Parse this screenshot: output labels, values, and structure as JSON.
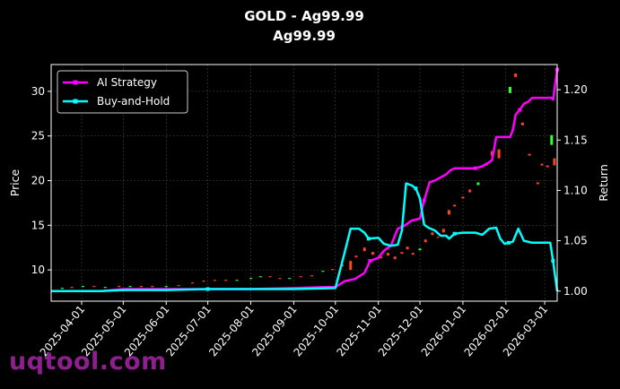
{
  "chart_data": {
    "type": "line",
    "title": "GOLD - Ag99.99",
    "subtitle": "Ag99.99",
    "ylabel": "Price",
    "y2label": "Return",
    "ylim": [
      6.5,
      33.0
    ],
    "y2lim": [
      0.99,
      1.225
    ],
    "xlim": [
      "2025-03-10",
      "2026-03-10"
    ],
    "x_ticks": [
      "2025-04-01",
      "2025-05-01",
      "2025-06-01",
      "2025-07-01",
      "2025-08-01",
      "2025-09-01",
      "2025-10-01",
      "2025-11-01",
      "2025-12-01",
      "2026-01-01",
      "2026-02-01",
      "2026-03-01"
    ],
    "y_ticks": [
      10,
      15,
      20,
      25,
      30
    ],
    "y2_ticks": [
      1.0,
      1.05,
      1.1,
      1.15,
      1.2
    ],
    "grid": true,
    "legend_position": "top-left",
    "colors": {
      "up": "#33ff33",
      "down": "#ff4422",
      "strategy": "#ff00ff",
      "hold": "#00ffff",
      "background": "#000000"
    },
    "series": [
      {
        "name": "AI Strategy",
        "axis": "right",
        "points": [
          [
            "2025-03-10",
            1.0
          ],
          [
            "2025-04-15",
            1.0
          ],
          [
            "2025-05-01",
            1.002
          ],
          [
            "2025-06-01",
            1.002
          ],
          [
            "2025-07-01",
            1.002
          ],
          [
            "2025-08-01",
            1.002
          ],
          [
            "2025-09-01",
            1.003
          ],
          [
            "2025-09-25",
            1.004
          ],
          [
            "2025-10-01",
            1.004
          ],
          [
            "2025-10-08",
            1.01
          ],
          [
            "2025-10-15",
            1.012
          ],
          [
            "2025-10-22",
            1.018
          ],
          [
            "2025-10-26",
            1.03
          ],
          [
            "2025-11-01",
            1.033
          ],
          [
            "2025-11-05",
            1.04
          ],
          [
            "2025-11-10",
            1.045
          ],
          [
            "2025-11-15",
            1.062
          ],
          [
            "2025-11-20",
            1.065
          ],
          [
            "2025-11-25",
            1.07
          ],
          [
            "2025-12-01",
            1.072
          ],
          [
            "2025-12-04",
            1.09
          ],
          [
            "2025-12-08",
            1.108
          ],
          [
            "2025-12-12",
            1.11
          ],
          [
            "2025-12-16",
            1.113
          ],
          [
            "2025-12-20",
            1.116
          ],
          [
            "2025-12-23",
            1.12
          ],
          [
            "2025-12-26",
            1.122
          ],
          [
            "2026-01-01",
            1.122
          ],
          [
            "2026-01-10",
            1.122
          ],
          [
            "2026-01-15",
            1.124
          ],
          [
            "2026-01-20",
            1.128
          ],
          [
            "2026-01-22",
            1.13
          ],
          [
            "2026-01-25",
            1.153
          ],
          [
            "2026-02-04",
            1.153
          ],
          [
            "2026-02-06",
            1.16
          ],
          [
            "2026-02-08",
            1.175
          ],
          [
            "2026-02-11",
            1.18
          ],
          [
            "2026-02-14",
            1.186
          ],
          [
            "2026-02-17",
            1.188
          ],
          [
            "2026-02-20",
            1.192
          ],
          [
            "2026-02-24",
            1.192
          ],
          [
            "2026-03-01",
            1.192
          ],
          [
            "2026-03-06",
            1.192
          ],
          [
            "2026-03-07",
            1.19
          ],
          [
            "2026-03-10",
            1.22
          ]
        ]
      },
      {
        "name": "Buy-and-Hold",
        "axis": "right",
        "points": [
          [
            "2025-03-10",
            1.0
          ],
          [
            "2025-04-15",
            1.0
          ],
          [
            "2025-05-01",
            1.001
          ],
          [
            "2025-06-01",
            1.001
          ],
          [
            "2025-07-01",
            1.002
          ],
          [
            "2025-08-01",
            1.002
          ],
          [
            "2025-09-01",
            1.002
          ],
          [
            "2025-10-01",
            1.003
          ],
          [
            "2025-10-08",
            1.04
          ],
          [
            "2025-10-12",
            1.062
          ],
          [
            "2025-10-18",
            1.062
          ],
          [
            "2025-10-22",
            1.058
          ],
          [
            "2025-10-25",
            1.052
          ],
          [
            "2025-11-01",
            1.053
          ],
          [
            "2025-11-05",
            1.047
          ],
          [
            "2025-11-10",
            1.045
          ],
          [
            "2025-11-15",
            1.046
          ],
          [
            "2025-11-18",
            1.06
          ],
          [
            "2025-11-21",
            1.107
          ],
          [
            "2025-11-25",
            1.105
          ],
          [
            "2025-11-28",
            1.102
          ],
          [
            "2025-12-01",
            1.092
          ],
          [
            "2025-12-04",
            1.066
          ],
          [
            "2025-12-07",
            1.063
          ],
          [
            "2025-12-12",
            1.06
          ],
          [
            "2025-12-16",
            1.055
          ],
          [
            "2025-12-20",
            1.055
          ],
          [
            "2025-12-22",
            1.052
          ],
          [
            "2025-12-26",
            1.057
          ],
          [
            "2026-01-01",
            1.058
          ],
          [
            "2026-01-10",
            1.058
          ],
          [
            "2026-01-15",
            1.056
          ],
          [
            "2026-01-20",
            1.062
          ],
          [
            "2026-01-25",
            1.063
          ],
          [
            "2026-01-28",
            1.052
          ],
          [
            "2026-01-31",
            1.047
          ],
          [
            "2026-02-03",
            1.048
          ],
          [
            "2026-02-06",
            1.049
          ],
          [
            "2026-02-10",
            1.062
          ],
          [
            "2026-02-14",
            1.05
          ],
          [
            "2026-02-20",
            1.048
          ],
          [
            "2026-02-24",
            1.048
          ],
          [
            "2026-03-01",
            1.048
          ],
          [
            "2026-03-05",
            1.048
          ],
          [
            "2026-03-07",
            1.03
          ],
          [
            "2026-03-10",
            1.0
          ]
        ]
      }
    ],
    "candles": [
      [
        "2025-03-18",
        7.9,
        8.0
      ],
      [
        "2025-03-25",
        8.1,
        8.0
      ],
      [
        "2025-04-02",
        8.1,
        8.2
      ],
      [
        "2025-04-10",
        8.2,
        8.1
      ],
      [
        "2025-04-18",
        8.0,
        8.1
      ],
      [
        "2025-04-28",
        8.2,
        8.1
      ],
      [
        "2025-05-06",
        8.1,
        8.2
      ],
      [
        "2025-05-14",
        8.2,
        8.1
      ],
      [
        "2025-05-22",
        8.2,
        8.1
      ],
      [
        "2025-06-01",
        8.1,
        8.2
      ],
      [
        "2025-06-10",
        8.3,
        8.2
      ],
      [
        "2025-06-20",
        8.6,
        8.5
      ],
      [
        "2025-06-28",
        8.8,
        8.7
      ],
      [
        "2025-07-06",
        8.9,
        8.8
      ],
      [
        "2025-07-14",
        8.9,
        8.8
      ],
      [
        "2025-07-22",
        8.9,
        8.9
      ],
      [
        "2025-08-01",
        9.0,
        9.1
      ],
      [
        "2025-08-08",
        9.2,
        9.3
      ],
      [
        "2025-08-15",
        9.3,
        9.2
      ],
      [
        "2025-08-22",
        9.1,
        9.0
      ],
      [
        "2025-08-29",
        9.0,
        9.1
      ],
      [
        "2025-09-06",
        9.3,
        9.2
      ],
      [
        "2025-09-14",
        9.4,
        9.3
      ],
      [
        "2025-09-22",
        9.8,
        9.9
      ],
      [
        "2025-09-29",
        10.1,
        10.0
      ],
      [
        "2025-10-06",
        10.6,
        10.4
      ],
      [
        "2025-10-12",
        11.0,
        10.0
      ],
      [
        "2025-10-16",
        11.6,
        11.4
      ],
      [
        "2025-10-22",
        12.5,
        12.1
      ],
      [
        "2025-10-28",
        12.0,
        11.7
      ],
      [
        "2025-11-03",
        11.5,
        11.3
      ],
      [
        "2025-11-08",
        11.9,
        11.6
      ],
      [
        "2025-11-13",
        11.5,
        11.2
      ],
      [
        "2025-11-18",
        12.0,
        11.8
      ],
      [
        "2025-11-22",
        12.6,
        12.3
      ],
      [
        "2025-11-26",
        11.9,
        11.7
      ],
      [
        "2025-12-01",
        12.2,
        12.4
      ],
      [
        "2025-12-05",
        13.4,
        13.1
      ],
      [
        "2025-12-10",
        14.2,
        13.9
      ],
      [
        "2025-12-14",
        13.7,
        13.6
      ],
      [
        "2025-12-18",
        14.6,
        14.2
      ],
      [
        "2025-12-22",
        16.7,
        16.2
      ],
      [
        "2025-12-26",
        17.3,
        17.1
      ],
      [
        "2026-01-01",
        18.2,
        18.0
      ],
      [
        "2026-01-06",
        19.0,
        18.7
      ],
      [
        "2026-01-12",
        19.5,
        19.8
      ],
      [
        "2026-01-18",
        22.0,
        21.7
      ],
      [
        "2026-01-22",
        23.3,
        22.8
      ],
      [
        "2026-01-27",
        23.5,
        22.5
      ],
      [
        "2026-01-31",
        25.0,
        24.8
      ],
      [
        "2026-02-04",
        29.8,
        30.5
      ],
      [
        "2026-02-08",
        32.0,
        31.6
      ],
      [
        "2026-02-13",
        26.5,
        26.2
      ],
      [
        "2026-02-18",
        23.0,
        22.8
      ],
      [
        "2026-02-24",
        19.8,
        19.6
      ],
      [
        "2026-02-27",
        21.9,
        21.7
      ],
      [
        "2026-03-03",
        21.7,
        21.5
      ],
      [
        "2026-03-06",
        24.0,
        25.1
      ],
      [
        "2026-03-08",
        22.5,
        21.7
      ]
    ]
  },
  "watermark": "uqtool.com"
}
